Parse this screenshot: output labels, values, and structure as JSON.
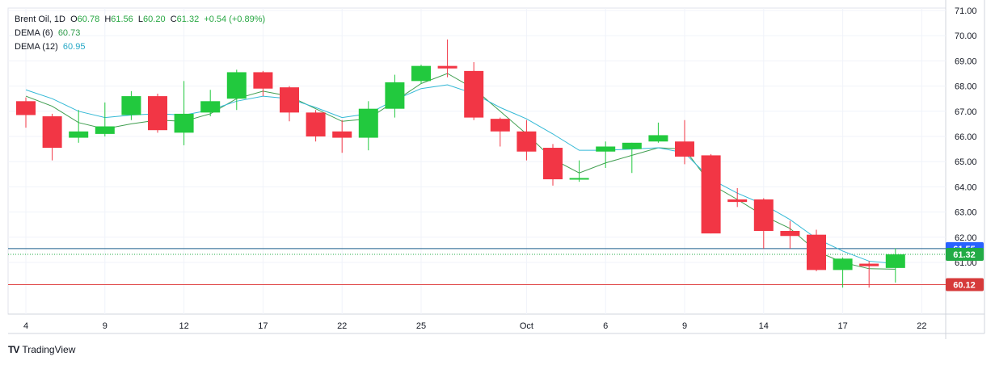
{
  "legend": {
    "symbol": "Brent Oil, 1D",
    "o_label": "O",
    "o_value": "60.78",
    "h_label": "H",
    "h_value": "61.56",
    "l_label": "L",
    "l_value": "60.20",
    "c_label": "C",
    "c_value": "61.32",
    "change": "+0.54 (+0.89%)",
    "dema6_label": "DEMA (6)",
    "dema6_value": "60.73",
    "dema12_label": "DEMA (12)",
    "dema12_value": "60.95"
  },
  "brand": {
    "name": "TradingView",
    "logo": "TV"
  },
  "colors": {
    "up": "#22c93e",
    "down": "#f23645",
    "dema6": "#3f9e4f",
    "dema12": "#33b9d6",
    "line_blue": "#1b5e8c",
    "line_red": "#e04a4a",
    "badge_blue": "#2962ff",
    "badge_green": "#22ab45",
    "badge_red": "#d63a3a"
  },
  "chart_data": {
    "type": "candlestick",
    "y_ticks": [
      "71.00",
      "70.00",
      "69.00",
      "68.00",
      "67.00",
      "66.00",
      "65.00",
      "64.00",
      "63.00",
      "62.00",
      "61.00"
    ],
    "x_ticks": [
      {
        "label": "4",
        "index": 0
      },
      {
        "label": "9",
        "index": 3
      },
      {
        "label": "12",
        "index": 6
      },
      {
        "label": "17",
        "index": 9
      },
      {
        "label": "22",
        "index": 12
      },
      {
        "label": "25",
        "index": 15
      },
      {
        "label": "Oct",
        "index": 19
      },
      {
        "label": "6",
        "index": 22
      },
      {
        "label": "9",
        "index": 25
      },
      {
        "label": "14",
        "index": 28
      },
      {
        "label": "17",
        "index": 31
      },
      {
        "label": "22",
        "index": 34
      }
    ],
    "ylim": [
      60.0,
      71.2
    ],
    "candles": [
      {
        "o": 67.4,
        "h": 67.55,
        "l": 66.35,
        "c": 66.85
      },
      {
        "o": 66.8,
        "h": 66.9,
        "l": 65.05,
        "c": 65.55
      },
      {
        "o": 65.95,
        "h": 67.05,
        "l": 65.75,
        "c": 66.2
      },
      {
        "o": 66.1,
        "h": 67.35,
        "l": 66.0,
        "c": 66.4
      },
      {
        "o": 66.85,
        "h": 67.8,
        "l": 66.65,
        "c": 67.6
      },
      {
        "o": 67.6,
        "h": 67.7,
        "l": 66.15,
        "c": 66.25
      },
      {
        "o": 66.15,
        "h": 68.2,
        "l": 65.65,
        "c": 66.9
      },
      {
        "o": 66.95,
        "h": 67.85,
        "l": 66.8,
        "c": 67.4
      },
      {
        "o": 67.5,
        "h": 68.65,
        "l": 67.05,
        "c": 68.55
      },
      {
        "o": 68.55,
        "h": 68.6,
        "l": 67.6,
        "c": 67.9
      },
      {
        "o": 67.95,
        "h": 68.0,
        "l": 66.6,
        "c": 66.95
      },
      {
        "o": 66.95,
        "h": 67.05,
        "l": 65.8,
        "c": 66.0
      },
      {
        "o": 66.2,
        "h": 66.65,
        "l": 65.35,
        "c": 65.95
      },
      {
        "o": 65.95,
        "h": 67.4,
        "l": 65.45,
        "c": 67.1
      },
      {
        "o": 67.1,
        "h": 68.45,
        "l": 66.75,
        "c": 68.15
      },
      {
        "o": 68.2,
        "h": 68.85,
        "l": 68.1,
        "c": 68.8
      },
      {
        "o": 68.8,
        "h": 69.85,
        "l": 68.35,
        "c": 68.7
      },
      {
        "o": 68.6,
        "h": 68.95,
        "l": 66.65,
        "c": 66.75
      },
      {
        "o": 66.7,
        "h": 66.75,
        "l": 65.6,
        "c": 66.2
      },
      {
        "o": 66.2,
        "h": 66.65,
        "l": 65.05,
        "c": 65.4
      },
      {
        "o": 65.55,
        "h": 65.7,
        "l": 64.05,
        "c": 64.3
      },
      {
        "o": 64.3,
        "h": 65.05,
        "l": 64.2,
        "c": 64.35
      },
      {
        "o": 65.4,
        "h": 65.8,
        "l": 64.75,
        "c": 65.6
      },
      {
        "o": 65.5,
        "h": 65.75,
        "l": 64.55,
        "c": 65.75
      },
      {
        "o": 65.8,
        "h": 66.55,
        "l": 65.75,
        "c": 66.05
      },
      {
        "o": 65.8,
        "h": 66.65,
        "l": 64.9,
        "c": 65.2
      },
      {
        "o": 65.25,
        "h": 65.3,
        "l": 62.15,
        "c": 62.15
      },
      {
        "o": 63.5,
        "h": 63.95,
        "l": 63.2,
        "c": 63.4
      },
      {
        "o": 63.5,
        "h": 63.55,
        "l": 61.55,
        "c": 62.25
      },
      {
        "o": 62.25,
        "h": 62.65,
        "l": 61.55,
        "c": 62.05
      },
      {
        "o": 62.1,
        "h": 62.3,
        "l": 60.65,
        "c": 60.7
      },
      {
        "o": 60.7,
        "h": 61.2,
        "l": 60.0,
        "c": 61.15
      },
      {
        "o": 60.95,
        "h": 61.05,
        "l": 60.0,
        "c": 60.85
      },
      {
        "o": 60.78,
        "h": 61.56,
        "l": 60.2,
        "c": 61.32
      }
    ],
    "series": [
      {
        "name": "DEMA (6)",
        "values": [
          67.6,
          67.2,
          66.55,
          66.3,
          66.5,
          66.65,
          66.6,
          66.9,
          67.5,
          67.8,
          67.6,
          67.1,
          66.6,
          66.7,
          67.4,
          68.1,
          68.5,
          67.9,
          67.0,
          66.1,
          65.1,
          64.55,
          64.95,
          65.25,
          65.55,
          65.5,
          64.1,
          63.5,
          62.85,
          62.35,
          61.45,
          61.0,
          60.75,
          60.73
        ]
      },
      {
        "name": "DEMA (12)",
        "values": [
          67.85,
          67.5,
          67.0,
          66.75,
          66.85,
          66.9,
          66.85,
          67.05,
          67.4,
          67.6,
          67.5,
          67.15,
          66.75,
          66.9,
          67.45,
          67.9,
          68.05,
          67.7,
          67.15,
          66.7,
          66.1,
          65.45,
          65.45,
          65.5,
          65.55,
          65.35,
          64.3,
          63.75,
          63.3,
          62.7,
          61.95,
          61.45,
          61.05,
          60.95
        ]
      }
    ],
    "price_lines": [
      {
        "value": 61.55,
        "label": "61.55",
        "color_key": "line_blue",
        "badge_key": "badge_blue"
      },
      {
        "value": 61.32,
        "label": "61.32",
        "color_key": "badge_green",
        "badge_key": "badge_green",
        "dotted": true
      },
      {
        "value": 60.12,
        "label": "60.12",
        "color_key": "line_red",
        "badge_key": "badge_red"
      }
    ]
  }
}
